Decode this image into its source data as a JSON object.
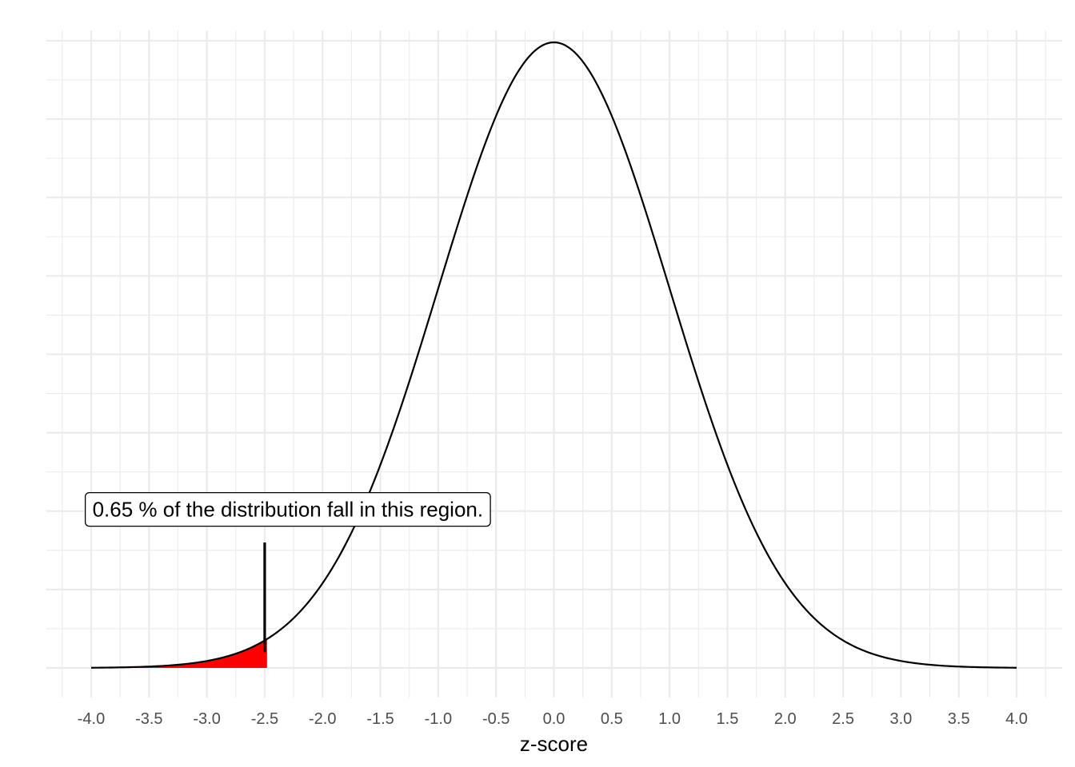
{
  "chart_data": {
    "type": "area",
    "distribution": "standard normal density",
    "xlabel": "z-score",
    "ylabel": "",
    "xlim": [
      -4.0,
      4.0
    ],
    "ylim": [
      0,
      0.4
    ],
    "x_ticks": [
      "-4.0",
      "-3.5",
      "-3.0",
      "-2.5",
      "-2.0",
      "-1.5",
      "-1.0",
      "-0.5",
      "0.0",
      "0.5",
      "1.0",
      "1.5",
      "2.0",
      "2.5",
      "3.0",
      "3.5",
      "4.0"
    ],
    "y_ticks_shown": false,
    "grid": true,
    "shaded_region": {
      "from": -4.0,
      "to": -2.48,
      "color": "#ff0000"
    },
    "marker_line": {
      "x": -2.5,
      "y_from": 0.01,
      "y_to": 0.08,
      "color": "#000000"
    },
    "annotation": {
      "text": "0.65 % of the distribution fall in this region.",
      "x": -2.3,
      "y": 0.1
    },
    "curve_color": "#000000"
  }
}
